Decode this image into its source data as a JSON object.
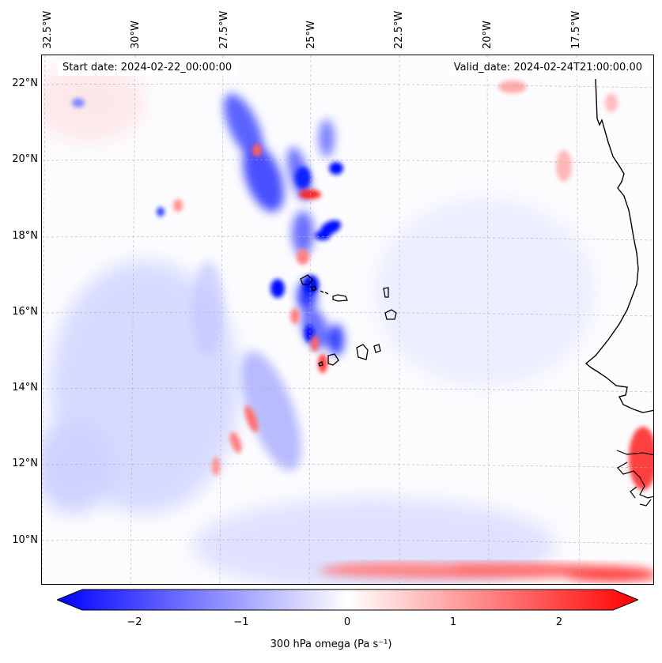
{
  "map": {
    "start_date": "Start date: 2024-02-22_00:00:00",
    "valid_date": "Valid_date: 2024-02-24T21:00:00.00",
    "lat_ticks": [
      "22°N",
      "20°N",
      "18°N",
      "16°N",
      "14°N",
      "12°N",
      "10°N"
    ],
    "lon_ticks": [
      "32.5°W",
      "30°W",
      "27.5°W",
      "25°W",
      "22.5°W",
      "20°W",
      "17.5°W"
    ],
    "field_colors": {
      "negative": "#0000ff",
      "zero": "#ffffff",
      "positive": "#ff0000"
    },
    "coastline_color": "#000000"
  },
  "colorbar": {
    "label": "300 hPa omega (Pa s⁻¹)",
    "ticks": [
      "−2",
      "−1",
      "0",
      "1",
      "2"
    ],
    "range": [
      -2.7,
      2.7
    ]
  }
}
